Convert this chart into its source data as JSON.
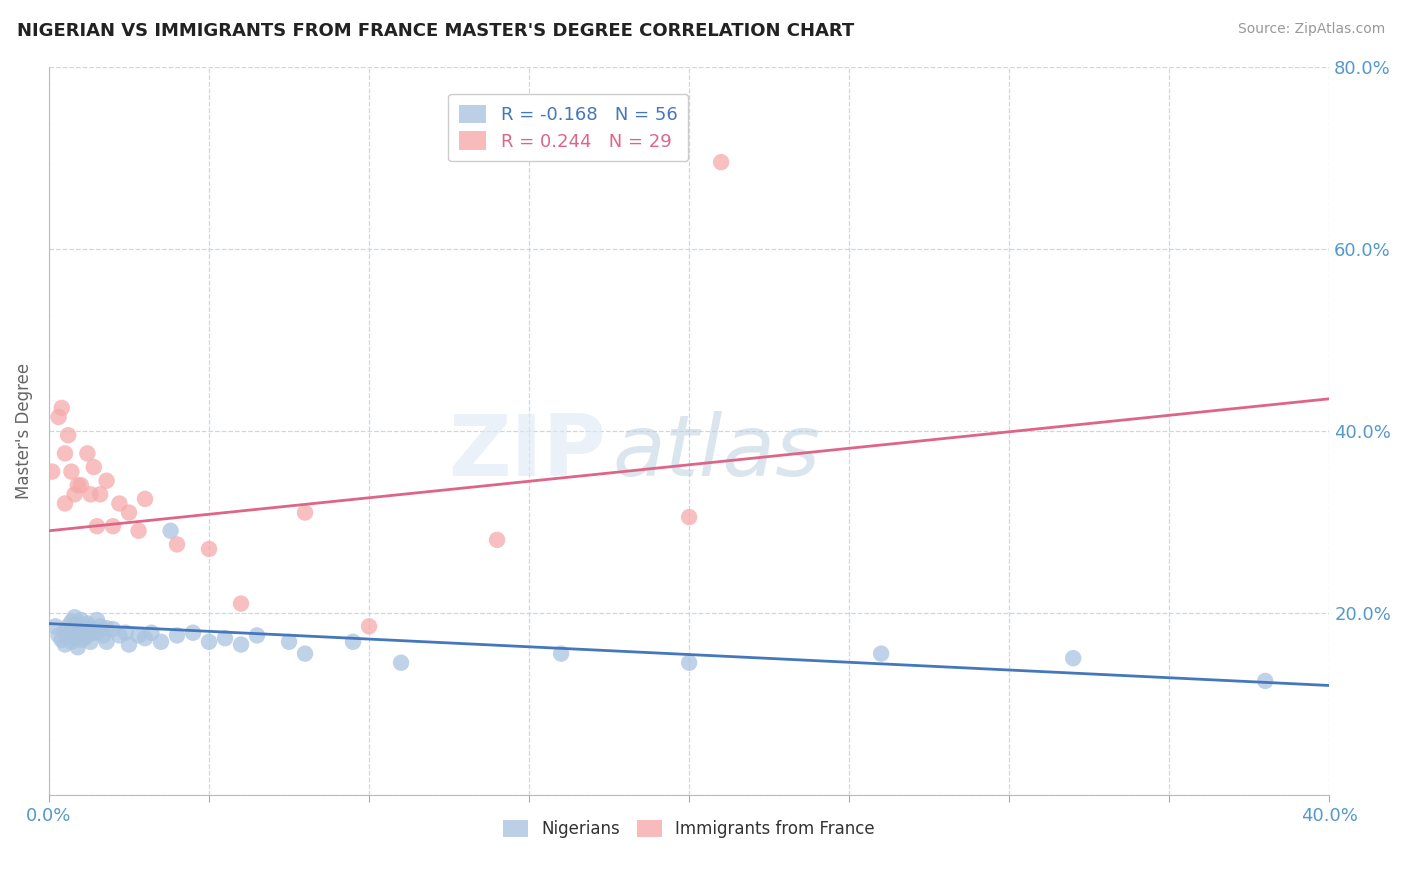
{
  "title": "NIGERIAN VS IMMIGRANTS FROM FRANCE MASTER'S DEGREE CORRELATION CHART",
  "source": "Source: ZipAtlas.com",
  "ylabel_label": "Master's Degree",
  "xlim": [
    0.0,
    0.4
  ],
  "ylim": [
    0.0,
    0.8
  ],
  "xticks": [
    0.0,
    0.05,
    0.1,
    0.15,
    0.2,
    0.25,
    0.3,
    0.35,
    0.4
  ],
  "yticks": [
    0.0,
    0.2,
    0.4,
    0.6,
    0.8
  ],
  "background_color": "#ffffff",
  "grid_color": "#c8d8e8",
  "watermark_zip": "ZIP",
  "watermark_atlas": "atlas",
  "legend_r1": "R = -0.168",
  "legend_n1": "N = 56",
  "legend_r2": "R = 0.244",
  "legend_n2": "N = 29",
  "blue_dot_color": "#aac4e0",
  "pink_dot_color": "#f5aaaa",
  "blue_line_color": "#4477bb",
  "pink_line_color": "#dd6688",
  "axis_tick_color": "#5599cc",
  "nigerians_label": "Nigerians",
  "france_label": "Immigrants from France",
  "blue_scatter_x": [
    0.002,
    0.003,
    0.004,
    0.005,
    0.005,
    0.006,
    0.006,
    0.007,
    0.007,
    0.007,
    0.008,
    0.008,
    0.008,
    0.009,
    0.009,
    0.009,
    0.01,
    0.01,
    0.01,
    0.011,
    0.011,
    0.012,
    0.012,
    0.013,
    0.013,
    0.014,
    0.015,
    0.015,
    0.016,
    0.017,
    0.018,
    0.018,
    0.02,
    0.022,
    0.024,
    0.025,
    0.028,
    0.03,
    0.032,
    0.035,
    0.038,
    0.04,
    0.045,
    0.05,
    0.055,
    0.06,
    0.065,
    0.075,
    0.08,
    0.095,
    0.11,
    0.16,
    0.2,
    0.26,
    0.32,
    0.38
  ],
  "blue_scatter_y": [
    0.185,
    0.175,
    0.17,
    0.18,
    0.165,
    0.185,
    0.175,
    0.19,
    0.178,
    0.168,
    0.195,
    0.183,
    0.172,
    0.188,
    0.175,
    0.162,
    0.192,
    0.18,
    0.17,
    0.185,
    0.172,
    0.188,
    0.175,
    0.182,
    0.168,
    0.178,
    0.192,
    0.178,
    0.185,
    0.175,
    0.183,
    0.168,
    0.182,
    0.175,
    0.178,
    0.165,
    0.175,
    0.172,
    0.178,
    0.168,
    0.29,
    0.175,
    0.178,
    0.168,
    0.172,
    0.165,
    0.175,
    0.168,
    0.155,
    0.168,
    0.145,
    0.155,
    0.145,
    0.155,
    0.15,
    0.125
  ],
  "pink_scatter_x": [
    0.001,
    0.003,
    0.004,
    0.005,
    0.005,
    0.006,
    0.007,
    0.008,
    0.009,
    0.01,
    0.012,
    0.013,
    0.014,
    0.015,
    0.016,
    0.018,
    0.02,
    0.022,
    0.025,
    0.028,
    0.03,
    0.04,
    0.05,
    0.06,
    0.08,
    0.1,
    0.14,
    0.2,
    0.21
  ],
  "pink_scatter_y": [
    0.355,
    0.415,
    0.425,
    0.375,
    0.32,
    0.395,
    0.355,
    0.33,
    0.34,
    0.34,
    0.375,
    0.33,
    0.36,
    0.295,
    0.33,
    0.345,
    0.295,
    0.32,
    0.31,
    0.29,
    0.325,
    0.275,
    0.27,
    0.21,
    0.31,
    0.185,
    0.28,
    0.305,
    0.695
  ],
  "blue_line_x": [
    0.0,
    0.4
  ],
  "blue_line_y": [
    0.188,
    0.12
  ],
  "pink_line_x": [
    0.0,
    0.4
  ],
  "pink_line_y": [
    0.29,
    0.435
  ]
}
